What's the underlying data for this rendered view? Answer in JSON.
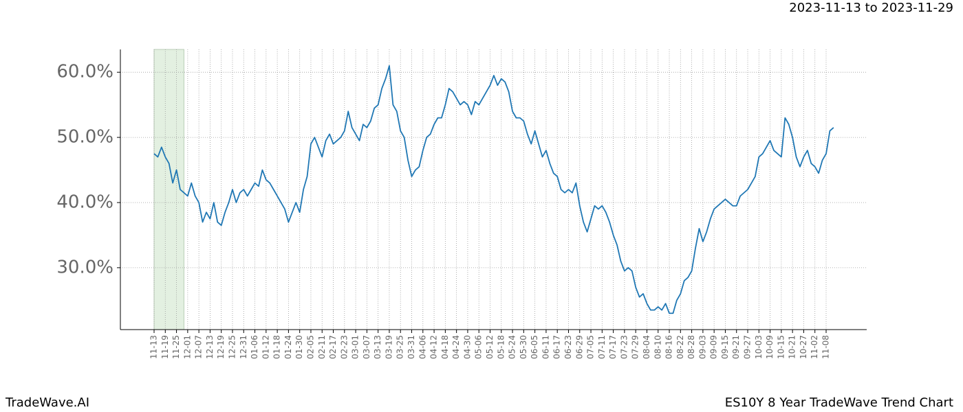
{
  "header": {
    "title": "2023-11-13 to 2023-11-29"
  },
  "footer": {
    "left": "TradeWave.AI",
    "right": "ES10Y 8 Year TradeWave Trend Chart"
  },
  "chart_data": {
    "type": "line",
    "color": "#1f77b4",
    "grid": true,
    "shade": {
      "from": 0,
      "to": 8,
      "color": "#e3f0e1"
    },
    "ylim": [
      20.5,
      63.5
    ],
    "yticks": [
      {
        "value": 30,
        "label": "30.0%"
      },
      {
        "value": 40,
        "label": "40.0%"
      },
      {
        "value": 50,
        "label": "50.0%"
      },
      {
        "value": 60,
        "label": "60.0%"
      }
    ],
    "categories": [
      "11-13",
      null,
      null,
      "11-19",
      null,
      null,
      "11-25",
      null,
      null,
      "12-01",
      null,
      null,
      "12-07",
      null,
      null,
      "12-13",
      null,
      null,
      "12-19",
      null,
      null,
      "12-25",
      null,
      null,
      "12-31",
      null,
      null,
      "01-06",
      null,
      null,
      "01-12",
      null,
      null,
      "01-18",
      null,
      null,
      "01-24",
      null,
      null,
      "01-30",
      null,
      null,
      "02-05",
      null,
      null,
      "02-11",
      null,
      null,
      "02-17",
      null,
      null,
      "02-23",
      null,
      null,
      "03-01",
      null,
      null,
      "03-07",
      null,
      null,
      "03-13",
      null,
      null,
      "03-19",
      null,
      null,
      "03-25",
      null,
      null,
      "03-31",
      null,
      null,
      "04-06",
      null,
      null,
      "04-12",
      null,
      null,
      "04-18",
      null,
      null,
      "04-24",
      null,
      null,
      "04-30",
      null,
      null,
      "05-06",
      null,
      null,
      "05-12",
      null,
      null,
      "05-18",
      null,
      null,
      "05-24",
      null,
      null,
      "05-30",
      null,
      null,
      "06-05",
      null,
      null,
      "06-11",
      null,
      null,
      "06-17",
      null,
      null,
      "06-23",
      null,
      null,
      "06-29",
      null,
      null,
      "07-05",
      null,
      null,
      "07-11",
      null,
      null,
      "07-17",
      null,
      null,
      "07-23",
      null,
      null,
      "07-29",
      null,
      null,
      "08-04",
      null,
      null,
      "08-10",
      null,
      null,
      "08-16",
      null,
      null,
      "08-22",
      null,
      null,
      "08-28",
      null,
      null,
      "09-03",
      null,
      null,
      "09-09",
      null,
      null,
      "09-15",
      null,
      null,
      "09-21",
      null,
      null,
      "09-27",
      null,
      null,
      "10-03",
      null,
      null,
      "10-09",
      null,
      null,
      "10-15",
      null,
      null,
      "10-21",
      null,
      null,
      "10-27",
      null,
      null,
      "11-02",
      null,
      null,
      "11-08",
      null,
      null
    ],
    "values": [
      47.5,
      47,
      48.5,
      47,
      46,
      43,
      45,
      42,
      41.5,
      41,
      43,
      41,
      40,
      37,
      38.5,
      37.5,
      40,
      37,
      36.5,
      38.5,
      40,
      42,
      40,
      41.5,
      42,
      41,
      42,
      43,
      42.5,
      45,
      43.5,
      43,
      42,
      41,
      40,
      39,
      37,
      38.5,
      40,
      38.5,
      42,
      44,
      49,
      50,
      48.5,
      47,
      49.5,
      50.5,
      49,
      49.5,
      50,
      51,
      54,
      51.5,
      50.5,
      49.5,
      52,
      51.5,
      52.5,
      54.5,
      55,
      57.5,
      59,
      61,
      55,
      54,
      51,
      50,
      46.5,
      44,
      45,
      45.5,
      48,
      50,
      50.5,
      52,
      53,
      53,
      55,
      57.5,
      57,
      56,
      55,
      55.5,
      55,
      53.5,
      55.5,
      55,
      56,
      57,
      58,
      59.5,
      58,
      59,
      58.5,
      57,
      54,
      53,
      53,
      52.5,
      50.5,
      49,
      51,
      49,
      47,
      48,
      46,
      44.5,
      44,
      42,
      41.5,
      42,
      41.5,
      43,
      39.5,
      37,
      35.5,
      37.5,
      39.5,
      39,
      39.5,
      38.5,
      37,
      35,
      33.5,
      31,
      29.5,
      30,
      29.5,
      27,
      25.5,
      26,
      24.5,
      23.5,
      23.5,
      24,
      23.5,
      24.5,
      23,
      23,
      25,
      26,
      28,
      28.5,
      29.5,
      33,
      36,
      34,
      35.5,
      37.5,
      39,
      39.5,
      40,
      40.5,
      40,
      39.5,
      39.5,
      41,
      41.5,
      42,
      43,
      44,
      47,
      47.5,
      48.5,
      49.5,
      48,
      47.5,
      47,
      53,
      52,
      50,
      47,
      45.5,
      47,
      48,
      46,
      45.5,
      44.5,
      46.5,
      47.5,
      51,
      51.5
    ]
  }
}
